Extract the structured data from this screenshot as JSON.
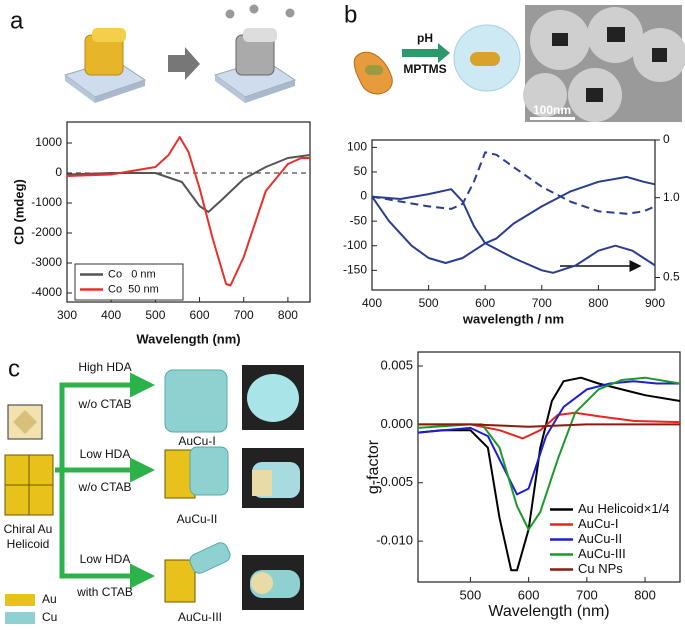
{
  "panel_labels": [
    "a",
    "b",
    "c"
  ],
  "panel_b_scheme": {
    "reagent_top": "pH",
    "reagent_bottom": "MPTMS",
    "scale_bar": "100nm"
  },
  "panel_c_scheme": {
    "branches": [
      {
        "condition_top": "High HDA",
        "condition_bottom": "w/o CTAB",
        "product": "AuCu-I"
      },
      {
        "condition_top": "Low HDA",
        "condition_bottom": "w/o CTAB",
        "product": "AuCu-II"
      },
      {
        "condition_top": "Low HDA",
        "condition_bottom": "with CTAB",
        "product": "AuCu-III"
      }
    ],
    "seed": [
      "Chiral Au",
      "Helicoid"
    ],
    "legend": [
      "Au",
      "Cu"
    ]
  },
  "chart_data": [
    {
      "type": "line",
      "x_label": "Wavelength (nm)",
      "y_label": "CD (mdeg)",
      "xlim": [
        300,
        850
      ],
      "ylim": [
        -4300,
        1700
      ],
      "xticks": [
        300,
        400,
        500,
        600,
        700,
        800
      ],
      "yticks": [
        1000,
        0,
        -1000,
        -2000,
        -3000,
        -4000
      ],
      "reference_line": 0,
      "legend": "lower left",
      "series": [
        {
          "name": "Co   0 nm",
          "color": "#555555",
          "x": [
            300,
            400,
            500,
            560,
            600,
            620,
            650,
            700,
            750,
            800,
            850
          ],
          "values": [
            -50,
            0,
            0,
            -300,
            -1100,
            -1300,
            -900,
            -200,
            200,
            500,
            600
          ]
        },
        {
          "name": "Co  50 nm",
          "color": "#e8302a",
          "x": [
            300,
            400,
            500,
            530,
            555,
            575,
            600,
            630,
            660,
            670,
            700,
            750,
            800,
            830,
            850
          ],
          "values": [
            -100,
            -50,
            200,
            600,
            1200,
            700,
            -500,
            -2200,
            -3700,
            -3750,
            -2800,
            -600,
            300,
            500,
            500
          ]
        }
      ]
    },
    {
      "type": "line",
      "x_label": "wavelength / nm",
      "xlim": [
        400,
        900
      ],
      "ylim": [
        -190,
        115
      ],
      "xticks": [
        400,
        500,
        600,
        700,
        800,
        900
      ],
      "yticks": [
        100,
        50,
        0,
        -50,
        -100,
        -150
      ],
      "y2lim": [
        2.6,
        0
      ],
      "y2ticks": [
        0,
        {
          "value": 1,
          "label": "1.0"
        }
      ],
      "y3lim": [
        0.4,
        1.6
      ],
      "y3ticks": [
        0.5
      ],
      "series": [
        {
          "color": "#2b3d8f",
          "dashed": true,
          "x": [
            400,
            450,
            500,
            540,
            560,
            580,
            600,
            620,
            650,
            700,
            750,
            800,
            850,
            880,
            900
          ],
          "values": [
            0,
            -10,
            -20,
            -25,
            -15,
            30,
            90,
            85,
            60,
            20,
            -10,
            -30,
            -35,
            -30,
            -20
          ]
        },
        {
          "color": "#2b3d8f",
          "dashed": false,
          "x": [
            400,
            450,
            500,
            540,
            560,
            580,
            600,
            620,
            650,
            700,
            750,
            800,
            850,
            880,
            900
          ],
          "values": [
            0,
            -5,
            5,
            15,
            -10,
            -60,
            -95,
            -85,
            -55,
            -20,
            10,
            30,
            40,
            30,
            25
          ]
        },
        {
          "color": "#2b3d8f",
          "dashed": false,
          "x": [
            400,
            430,
            470,
            500,
            530,
            560,
            600,
            650,
            700,
            720,
            760,
            800,
            830,
            860,
            900
          ],
          "values": [
            0,
            -50,
            -100,
            -125,
            -135,
            -125,
            -95,
            -125,
            -150,
            -155,
            -140,
            -110,
            -100,
            -110,
            -140
          ]
        }
      ]
    },
    {
      "type": "line",
      "x_label": "Wavelength (nm)",
      "y_label": "g-factor",
      "xlim": [
        410,
        860
      ],
      "ylim": [
        -0.0135,
        0.0062
      ],
      "xticks": [
        500,
        600,
        700,
        800
      ],
      "yticks": [
        0.005,
        {
          "value": 0,
          "label": "0.000"
        },
        -0.005,
        {
          "value": -0.01,
          "label": "-0.010"
        }
      ],
      "legend": "lower right",
      "series": [
        {
          "name": "Au Helicoid×1/4",
          "color": "#000000",
          "x": [
            410,
            450,
            500,
            530,
            550,
            570,
            580,
            600,
            620,
            640,
            660,
            690,
            720,
            760,
            800,
            860
          ],
          "values": [
            -0.0007,
            -0.0005,
            -0.0005,
            -0.002,
            -0.008,
            -0.0125,
            -0.0125,
            -0.009,
            -0.002,
            0.002,
            0.0037,
            0.004,
            0.0035,
            0.003,
            0.0025,
            0.002
          ]
        },
        {
          "name": "AuCu-I",
          "color": "#e8251f",
          "x": [
            410,
            500,
            550,
            590,
            620,
            650,
            680,
            720,
            780,
            860
          ],
          "values": [
            0,
            0,
            -0.0005,
            -0.0012,
            -0.0005,
            0.0008,
            0.001,
            0.0007,
            0.0003,
            0.0002
          ]
        },
        {
          "name": "AuCu-II",
          "color": "#1f1fd0",
          "x": [
            410,
            500,
            530,
            560,
            580,
            600,
            630,
            660,
            700,
            740,
            780,
            820,
            860
          ],
          "values": [
            -0.0007,
            -0.0003,
            -0.001,
            -0.004,
            -0.006,
            -0.0055,
            -0.001,
            0.0015,
            0.003,
            0.0035,
            0.0037,
            0.0035,
            0.0035
          ]
        },
        {
          "name": "AuCu-III",
          "color": "#1a9a2a",
          "x": [
            410,
            500,
            520,
            550,
            580,
            600,
            620,
            650,
            680,
            720,
            760,
            800,
            860
          ],
          "values": [
            -0.0003,
            0,
            0,
            -0.002,
            -0.007,
            -0.009,
            -0.0075,
            -0.003,
            0.001,
            0.003,
            0.0038,
            0.004,
            0.0035
          ]
        },
        {
          "name": "Cu NPs",
          "color": "#8b1a10",
          "x": [
            410,
            500,
            600,
            700,
            800,
            860
          ],
          "values": [
            0,
            0,
            -0.0002,
            0,
            0,
            0
          ]
        }
      ]
    }
  ]
}
